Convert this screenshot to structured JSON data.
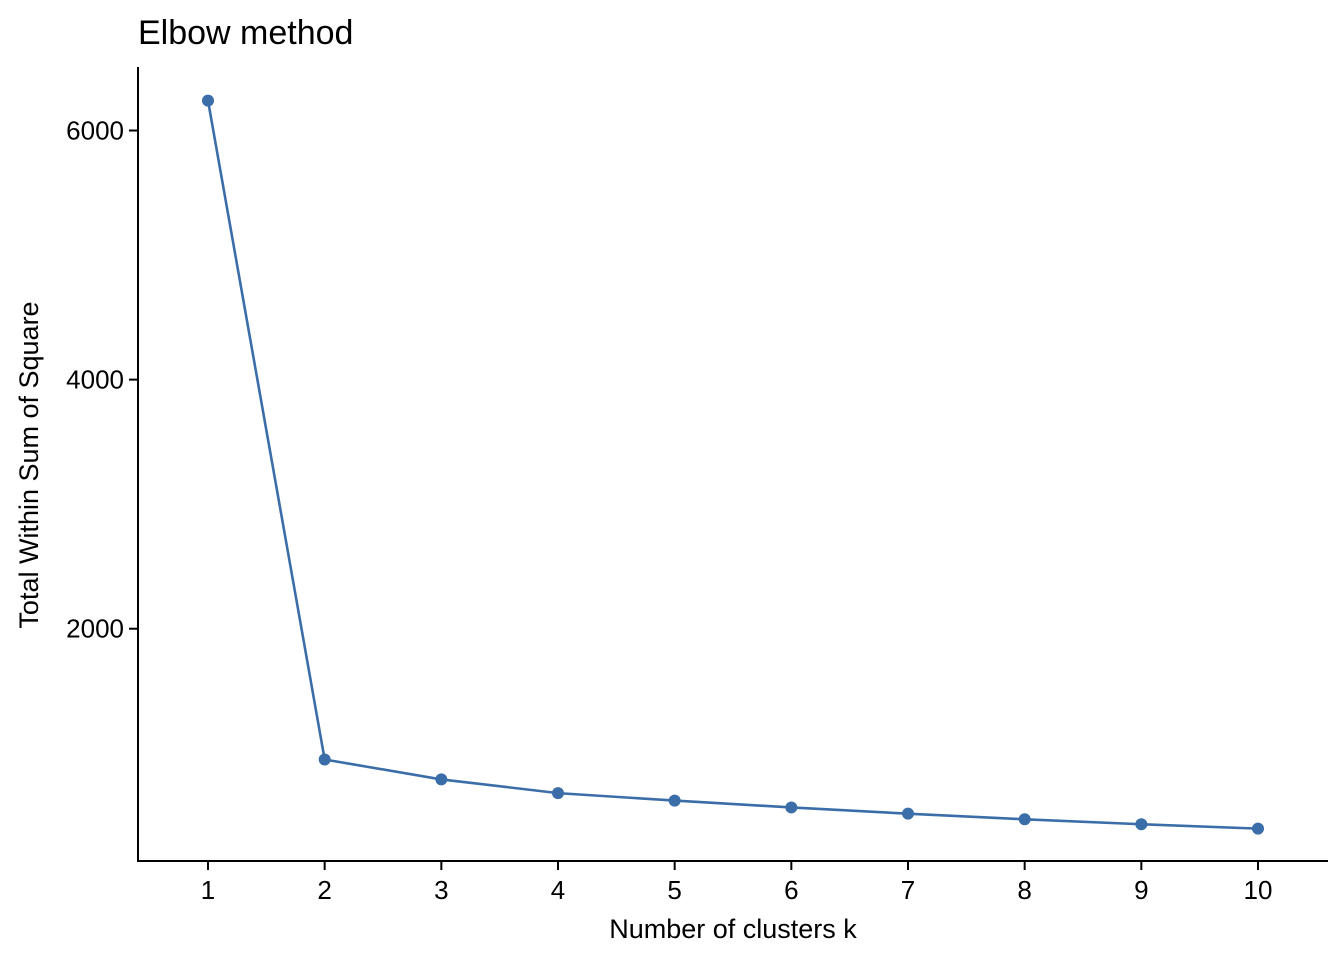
{
  "chart_data": {
    "type": "line",
    "title": "Elbow method",
    "xlabel": "Number of clusters k",
    "ylabel": "Total Within Sum of Square",
    "x": [
      1,
      2,
      3,
      4,
      5,
      6,
      7,
      8,
      9,
      10
    ],
    "series": [
      {
        "values": [
          6240,
          950,
          790,
          680,
          620,
          565,
          515,
          470,
          430,
          395
        ],
        "color": "#3b6ea8"
      }
    ],
    "xticks": [
      "1",
      "2",
      "3",
      "4",
      "5",
      "6",
      "7",
      "8",
      "9",
      "10"
    ],
    "yticks": [
      2000,
      4000,
      6000
    ],
    "xlim": [
      0.4,
      10.6
    ],
    "ylim": [
      135,
      6510
    ],
    "grid": false,
    "legend": "none"
  }
}
